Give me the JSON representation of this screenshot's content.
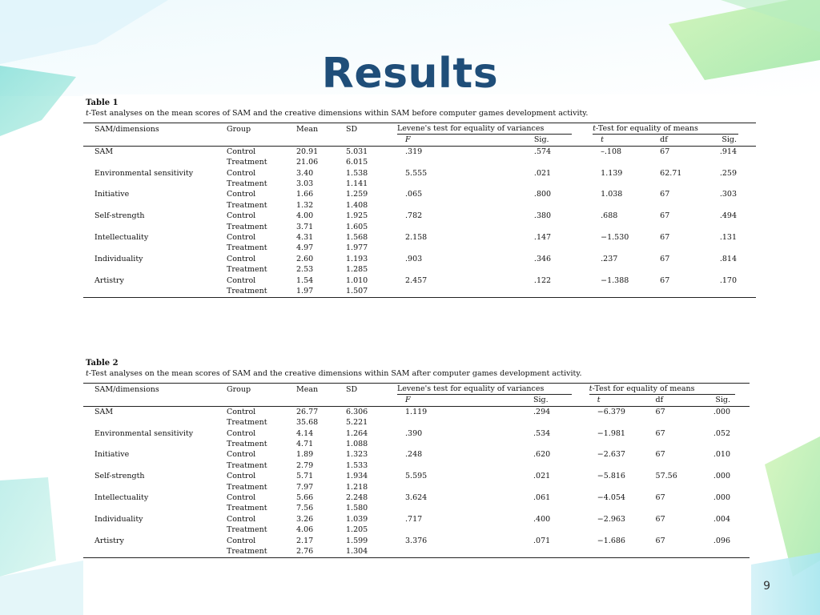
{
  "slide": {
    "title": "Results",
    "page_number": "9"
  },
  "table1": {
    "title": "Table 1",
    "caption_t": "t",
    "caption_rest": "-Test analyses on the mean scores of SAM and the creative dimensions within SAM before computer games development activity.",
    "headers": {
      "dim": "SAM/dimensions",
      "group": "Group",
      "mean": "Mean",
      "sd": "SD",
      "levene": "Levene's test for equality of variances",
      "ttest_t": "t",
      "ttest_rest": "-Test for equality of means",
      "F": "F",
      "sig": "Sig.",
      "t": "t",
      "df": "df",
      "sig2": "Sig."
    },
    "rows": [
      {
        "dim": "SAM",
        "g1": "Control",
        "g2": "Treatment",
        "m1": "20.91",
        "m2": "21.06",
        "s1": "5.031",
        "s2": "6.015",
        "F": ".319",
        "sig": ".574",
        "t": "–.108",
        "df": "67",
        "sig2": ".914"
      },
      {
        "dim": "Environmental sensitivity",
        "g1": "Control",
        "g2": "Treatment",
        "m1": "3.40",
        "m2": "3.03",
        "s1": "1.538",
        "s2": "1.141",
        "F": "5.555",
        "sig": ".021",
        "t": "1.139",
        "df": "62.71",
        "sig2": ".259"
      },
      {
        "dim": "Initiative",
        "g1": "Control",
        "g2": "Treatment",
        "m1": "1.66",
        "m2": "1.32",
        "s1": "1.259",
        "s2": "1.408",
        "F": ".065",
        "sig": ".800",
        "t": "1.038",
        "df": "67",
        "sig2": ".303"
      },
      {
        "dim": "Self-strength",
        "g1": "Control",
        "g2": "Treatment",
        "m1": "4.00",
        "m2": "3.71",
        "s1": "1.925",
        "s2": "1.605",
        "F": ".782",
        "sig": ".380",
        "t": ".688",
        "df": "67",
        "sig2": ".494"
      },
      {
        "dim": "Intellectuality",
        "g1": "Control",
        "g2": "Treatment",
        "m1": "4.31",
        "m2": "4.97",
        "s1": "1.568",
        "s2": "1.977",
        "F": "2.158",
        "sig": ".147",
        "t": "−1.530",
        "df": "67",
        "sig2": ".131"
      },
      {
        "dim": "Individuality",
        "g1": "Control",
        "g2": "Treatment",
        "m1": "2.60",
        "m2": "2.53",
        "s1": "1.193",
        "s2": "1.285",
        "F": ".903",
        "sig": ".346",
        "t": ".237",
        "df": "67",
        "sig2": ".814"
      },
      {
        "dim": "Artistry",
        "g1": "Control",
        "g2": "Treatment",
        "m1": "1.54",
        "m2": "1.97",
        "s1": "1.010",
        "s2": "1.507",
        "F": "2.457",
        "sig": ".122",
        "t": "−1.388",
        "df": "67",
        "sig2": ".170"
      }
    ]
  },
  "table2": {
    "title": "Table 2",
    "caption_t": "t",
    "caption_rest": "-Test analyses on the mean scores of SAM and the creative dimensions within SAM after computer games development activity.",
    "headers": {
      "dim": "SAM/dimensions",
      "group": "Group",
      "mean": "Mean",
      "sd": "SD",
      "levene": "Levene's test for equality of variances",
      "ttest_t": "t",
      "ttest_rest": "-Test for equality of means",
      "F": "F",
      "sig": "Sig.",
      "t": "t",
      "df": "df",
      "sig2": "Sig."
    },
    "rows": [
      {
        "dim": "SAM",
        "g1": "Control",
        "g2": "Treatment",
        "m1": "26.77",
        "m2": "35.68",
        "s1": "6.306",
        "s2": "5.221",
        "F": "1.119",
        "sig": ".294",
        "t": "−6.379",
        "df": "67",
        "sig2": ".000"
      },
      {
        "dim": "Environmental sensitivity",
        "g1": "Control",
        "g2": "Treatment",
        "m1": "4.14",
        "m2": "4.71",
        "s1": "1.264",
        "s2": "1.088",
        "F": ".390",
        "sig": ".534",
        "t": "−1.981",
        "df": "67",
        "sig2": ".052"
      },
      {
        "dim": "Initiative",
        "g1": "Control",
        "g2": "Treatment",
        "m1": "1.89",
        "m2": "2.79",
        "s1": "1.323",
        "s2": "1.533",
        "F": ".248",
        "sig": ".620",
        "t": "−2.637",
        "df": "67",
        "sig2": ".010"
      },
      {
        "dim": "Self-strength",
        "g1": "Control",
        "g2": "Treatment",
        "m1": "5.71",
        "m2": "7.97",
        "s1": "1.934",
        "s2": "1.218",
        "F": "5.595",
        "sig": ".021",
        "t": "−5.816",
        "df": "57.56",
        "sig2": ".000"
      },
      {
        "dim": "Intellectuality",
        "g1": "Control",
        "g2": "Treatment",
        "m1": "5.66",
        "m2": "7.56",
        "s1": "2.248",
        "s2": "1.580",
        "F": "3.624",
        "sig": ".061",
        "t": "−4.054",
        "df": "67",
        "sig2": ".000"
      },
      {
        "dim": "Individuality",
        "g1": "Control",
        "g2": "Treatment",
        "m1": "3.26",
        "m2": "4.06",
        "s1": "1.039",
        "s2": "1.205",
        "F": ".717",
        "sig": ".400",
        "t": "−2.963",
        "df": "67",
        "sig2": ".004"
      },
      {
        "dim": "Artistry",
        "g1": "Control",
        "g2": "Treatment",
        "m1": "2.17",
        "m2": "2.76",
        "s1": "1.599",
        "s2": "1.304",
        "F": "3.376",
        "sig": ".071",
        "t": "−1.686",
        "df": "67",
        "sig2": ".096"
      }
    ]
  },
  "colors": {
    "title": "#1f4e79",
    "deco_teal": "#5fd3c4",
    "deco_green": "#a8e89a",
    "deco_sky": "#bfe9f5"
  }
}
